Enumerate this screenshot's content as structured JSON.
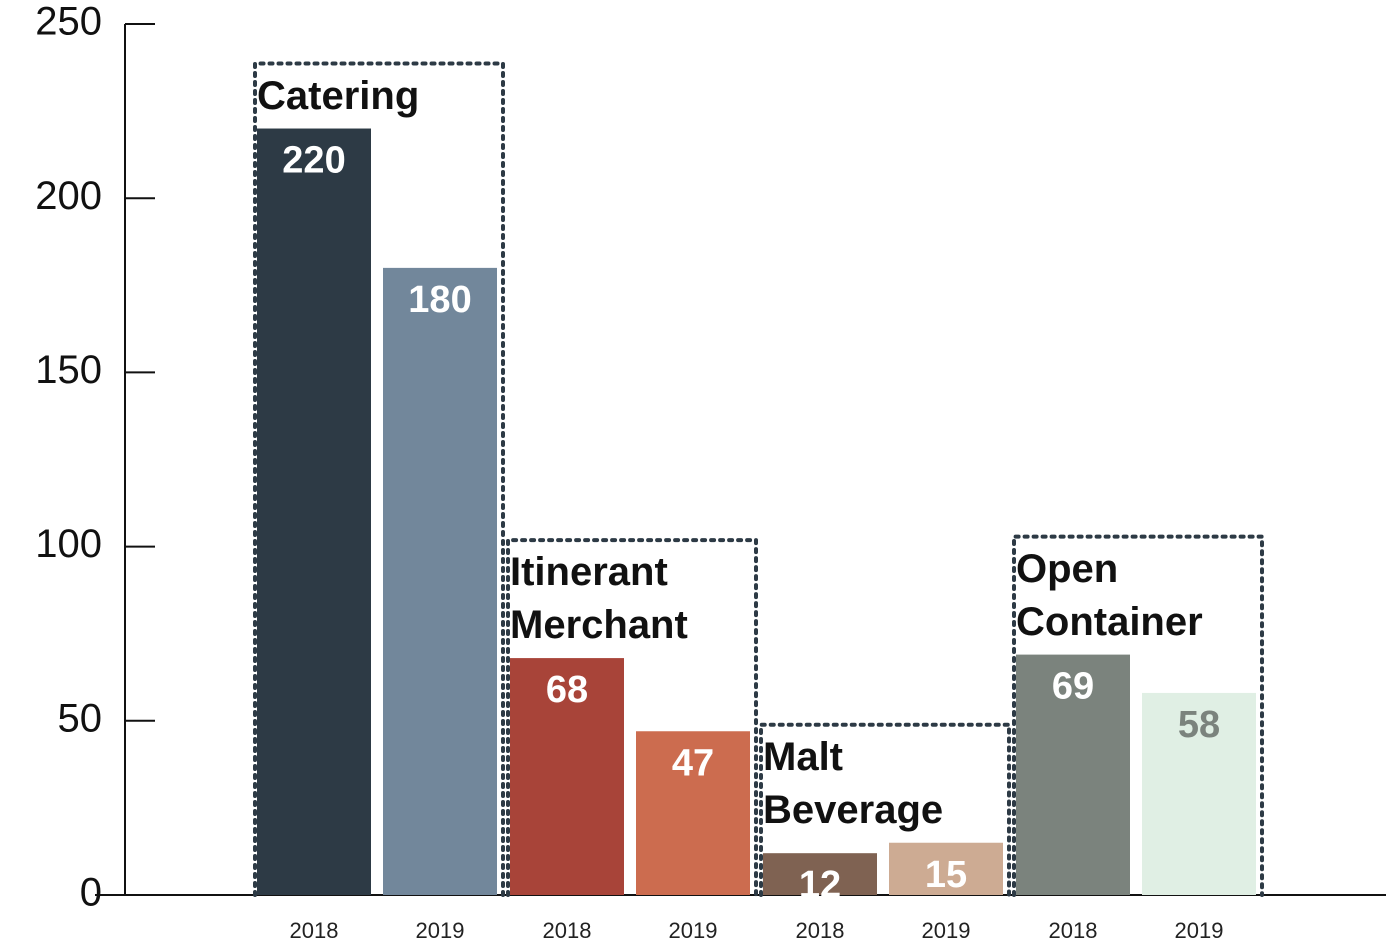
{
  "chart_data": {
    "type": "bar",
    "categories": [
      "Catering",
      "Itinerant Merchant",
      "Malt Beverage",
      "Open Container"
    ],
    "series": [
      {
        "name": "2018",
        "values": [
          220,
          68,
          12,
          69
        ],
        "colors": [
          "#2d3a45",
          "#a84439",
          "#7f6252",
          "#7b837d"
        ],
        "label_colors": [
          "#ffffff",
          "#ffffff",
          "#ffffff",
          "#ffffff"
        ]
      },
      {
        "name": "2019",
        "values": [
          180,
          47,
          15,
          58
        ],
        "colors": [
          "#72879b",
          "#cc6c4f",
          "#cdab93",
          "#e0efe4"
        ],
        "label_colors": [
          "#ffffff",
          "#ffffff",
          "#ffffff",
          "#7b837d"
        ]
      }
    ],
    "ylim": [
      0,
      250
    ],
    "yticks": [
      0,
      50,
      100,
      150,
      200,
      250
    ]
  }
}
